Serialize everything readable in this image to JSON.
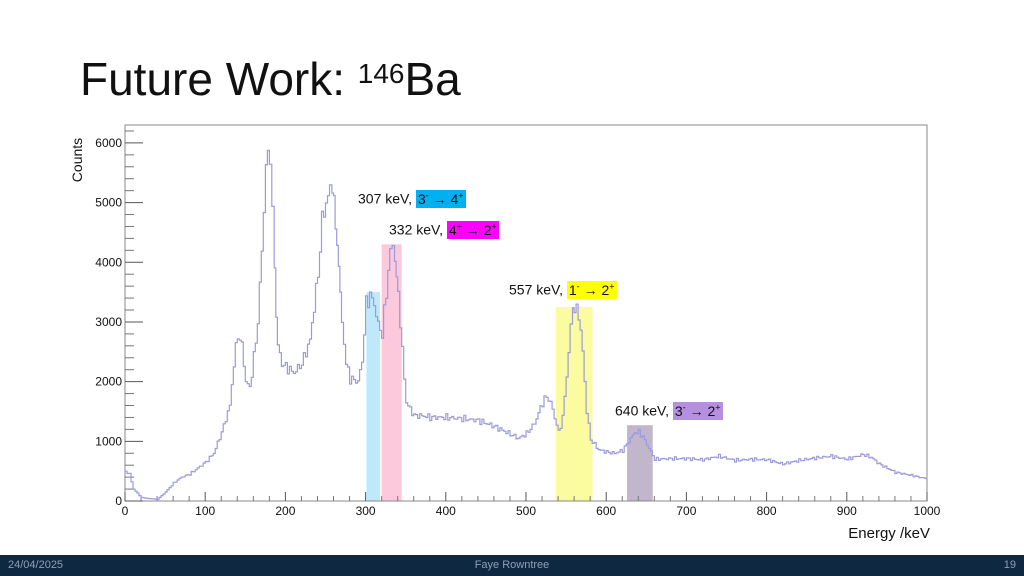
{
  "slide": {
    "title_main": "Future Work: ",
    "title_mass": "146",
    "title_element": "Ba",
    "footer_date": "24/04/2025",
    "footer_author": "Faye Rowntree",
    "footer_page": "19"
  },
  "annotations": [
    {
      "energy": "307 keV, ",
      "from": "3",
      "from_parity": "-",
      "arrow": "→",
      "to": "4",
      "to_parity": "+",
      "color": "#00b0f0"
    },
    {
      "energy": "332 keV, ",
      "from": "4",
      "from_parity": "+",
      "arrow": "→",
      "to": "2",
      "to_parity": "+",
      "color": "#ff00ff"
    },
    {
      "energy": "557 keV, ",
      "from": "1",
      "from_parity": "-",
      "arrow": "→",
      "to": "2",
      "to_parity": "+",
      "color": "#ffff00"
    },
    {
      "energy": "640 keV, ",
      "from": "3",
      "from_parity": "-",
      "arrow": "→",
      "to": "2",
      "to_parity": "+",
      "color": "#b58fe0"
    }
  ],
  "chart_data": {
    "type": "line",
    "title": "",
    "xlabel": "Energy /keV",
    "ylabel": "Counts",
    "xlim": [
      0,
      1000
    ],
    "ylim": [
      0,
      6300
    ],
    "x_ticks": [
      0,
      100,
      200,
      300,
      400,
      500,
      600,
      700,
      800,
      900,
      1000
    ],
    "y_ticks": [
      0,
      1000,
      2000,
      3000,
      4000,
      5000,
      6000
    ],
    "grid": false,
    "line_color": "#9b9bdc",
    "series": [
      {
        "x": [
          0,
          5,
          10,
          20,
          30,
          40,
          50,
          60,
          70,
          80,
          90,
          100,
          110,
          120,
          130,
          135,
          140,
          145,
          150,
          155,
          160,
          165,
          170,
          175,
          180,
          183,
          186,
          190,
          195,
          200,
          210,
          220,
          230,
          240,
          245,
          250,
          255,
          258,
          262,
          266,
          270,
          275,
          280,
          290,
          295,
          300,
          305,
          310,
          315,
          320,
          325,
          330,
          333,
          336,
          340,
          345,
          350,
          360,
          370,
          380,
          400,
          420,
          440,
          460,
          480,
          490,
          500,
          510,
          520,
          525,
          530,
          540,
          545,
          550,
          555,
          558,
          560,
          565,
          570,
          575,
          580,
          590,
          600,
          610,
          620,
          630,
          635,
          640,
          645,
          650,
          660,
          680,
          700,
          720,
          740,
          760,
          780,
          800,
          820,
          840,
          860,
          880,
          900,
          915,
          920,
          930,
          940,
          960,
          980,
          1000
        ],
        "y": [
          500,
          450,
          200,
          60,
          40,
          30,
          150,
          300,
          400,
          450,
          550,
          650,
          800,
          1150,
          1600,
          2300,
          2800,
          2600,
          2000,
          1900,
          2400,
          3000,
          4200,
          5600,
          5900,
          5000,
          3800,
          2600,
          2300,
          2250,
          2150,
          2300,
          2700,
          3800,
          4700,
          5000,
          5200,
          5200,
          4700,
          3900,
          3000,
          2300,
          2050,
          2000,
          2350,
          3300,
          3450,
          3300,
          2950,
          2800,
          3500,
          4200,
          4300,
          4100,
          3500,
          2500,
          1650,
          1430,
          1430,
          1400,
          1400,
          1380,
          1350,
          1250,
          1120,
          1050,
          1130,
          1300,
          1650,
          1750,
          1650,
          1150,
          1400,
          2100,
          2900,
          3200,
          3200,
          3150,
          2500,
          1500,
          1030,
          860,
          820,
          800,
          850,
          1050,
          1150,
          1150,
          1080,
          950,
          700,
          710,
          710,
          690,
          750,
          680,
          700,
          690,
          620,
          680,
          720,
          750,
          700,
          760,
          780,
          730,
          620,
          480,
          430,
          370
        ]
      }
    ],
    "highlight_bands": [
      {
        "x0": 301,
        "x1": 318,
        "y_top": 3500,
        "color": "#bfe9fb"
      },
      {
        "x0": 320,
        "x1": 345,
        "y_top": 4300,
        "color": "#fbc8dc"
      },
      {
        "x0": 537,
        "x1": 583,
        "y_top": 3250,
        "color": "#fbfba0"
      },
      {
        "x0": 626,
        "x1": 658,
        "y_top": 1270,
        "color": "#c2b6cc"
      }
    ]
  }
}
